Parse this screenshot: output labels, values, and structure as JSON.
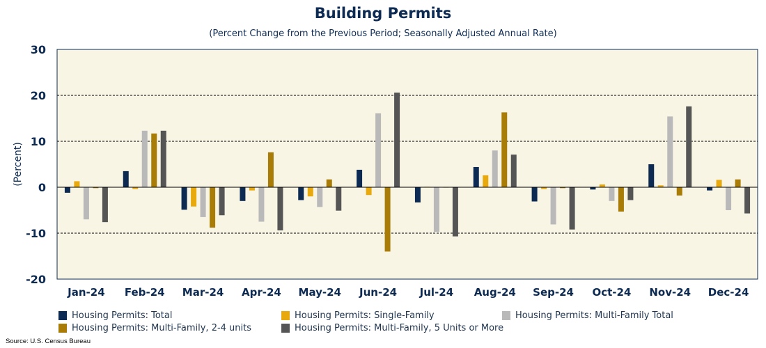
{
  "title": "Building Permits",
  "subtitle": "(Percent Change from the Previous Period; Seasonally Adjusted Annual Rate)",
  "source": "Source: U.S. Census Bureau",
  "chart_data": {
    "type": "bar",
    "categories": [
      "Jan-24",
      "Feb-24",
      "Mar-24",
      "Apr-24",
      "May-24",
      "Jun-24",
      "Jul-24",
      "Aug-24",
      "Sep-24",
      "Oct-24",
      "Nov-24",
      "Dec-24"
    ],
    "ylabel": "(Percent)",
    "ylim": [
      -20,
      30
    ],
    "yticks": [
      30,
      20,
      10,
      0,
      -10,
      -20
    ],
    "ytick_labels": [
      "30",
      "20",
      "10",
      "0",
      "-10",
      "-20"
    ],
    "grid": "horizontal dashed",
    "legend_position": "bottom",
    "series": [
      {
        "name": "Housing Permits: Total",
        "color": "#0c2a52",
        "values": [
          -1.2,
          3.5,
          -4.9,
          -3.0,
          -2.8,
          3.8,
          -3.3,
          4.4,
          -3.1,
          -0.5,
          5.0,
          -0.7
        ]
      },
      {
        "name": "Housing Permits: Single-Family",
        "color": "#e8a90e",
        "values": [
          1.3,
          -0.4,
          -4.2,
          -0.7,
          -2.0,
          -1.7,
          0.1,
          2.6,
          -0.4,
          0.6,
          0.4,
          1.6
        ]
      },
      {
        "name": "Housing Permits: Multi-Family Total",
        "color": "#b9b9b9",
        "values": [
          -7.0,
          12.3,
          -6.5,
          -7.5,
          -4.3,
          16.1,
          -9.7,
          8.0,
          -8.1,
          -3.0,
          15.4,
          -5.0
        ]
      },
      {
        "name": "Housing Permits: Multi-Family, 2-4 units",
        "color": "#a87c06",
        "values": [
          -0.2,
          11.7,
          -8.8,
          7.6,
          1.7,
          -14.0,
          0.0,
          16.3,
          -0.2,
          -5.3,
          -1.8,
          1.7
        ]
      },
      {
        "name": "Housing Permits: Multi-Family, 5 Units or More",
        "color": "#555555",
        "values": [
          -7.6,
          12.3,
          -6.1,
          -9.4,
          -5.1,
          20.6,
          -10.7,
          7.1,
          -9.2,
          -2.8,
          17.6,
          -5.7
        ]
      }
    ]
  }
}
